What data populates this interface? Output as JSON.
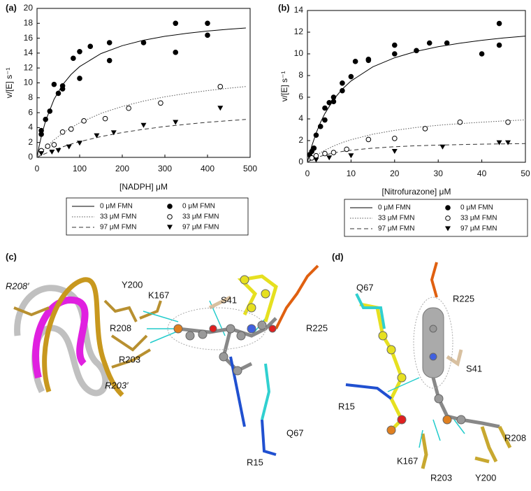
{
  "chart_data": [
    {
      "type": "scatter",
      "panel_label": "(a)",
      "x_label": "[NADPH] μM",
      "y_label": "v/[E] s⁻¹",
      "xlim": [
        0,
        500
      ],
      "xticks": [
        0,
        100,
        200,
        300,
        400,
        500
      ],
      "ylim": [
        0,
        20
      ],
      "yticks": [
        0,
        2,
        4,
        6,
        8,
        10,
        12,
        14,
        16,
        18,
        20
      ],
      "series": [
        {
          "name": "0 μM FMN",
          "type": "line",
          "style": "solid",
          "color": "#000000",
          "x": [
            0,
            5,
            10,
            20,
            40,
            60,
            80,
            100,
            150,
            200,
            250,
            300,
            350,
            400,
            450,
            490
          ],
          "values": [
            0,
            1.5,
            2.79,
            4.88,
            7.8,
            9.75,
            11.14,
            12.19,
            13.93,
            15.0,
            15.73,
            16.25,
            16.64,
            16.96,
            17.2,
            17.37
          ]
        },
        {
          "name": "33 μM FMN",
          "type": "line",
          "style": "dotted",
          "color": "#555555",
          "x": [
            0,
            5,
            10,
            20,
            40,
            60,
            80,
            100,
            150,
            200,
            250,
            300,
            350,
            400,
            450,
            490
          ],
          "values": [
            0,
            0.35,
            0.68,
            1.3,
            2.36,
            3.25,
            4.0,
            4.64,
            5.91,
            6.84,
            7.56,
            8.13,
            8.58,
            8.97,
            9.29,
            9.51
          ]
        },
        {
          "name": "97 μM FMN",
          "type": "line",
          "style": "dashed",
          "color": "#333333",
          "x": [
            0,
            5,
            10,
            20,
            40,
            60,
            80,
            100,
            150,
            200,
            250,
            300,
            350,
            400,
            450,
            490
          ],
          "values": [
            0,
            0.14,
            0.28,
            0.53,
            1.0,
            1.41,
            1.78,
            2.11,
            2.79,
            3.33,
            3.77,
            4.14,
            4.44,
            4.71,
            4.93,
            5.09
          ]
        },
        {
          "name": "0 μM FMN",
          "type": "scatter",
          "marker": "filled-circle",
          "color": "#000000",
          "x": [
            10,
            10,
            20,
            30,
            40,
            50,
            60,
            60,
            85,
            100,
            100,
            125,
            170,
            170,
            250,
            325,
            325,
            400,
            400
          ],
          "values": [
            3.1,
            3.6,
            5.1,
            6.2,
            9.8,
            8.6,
            9.2,
            9.6,
            13.3,
            14.2,
            10.6,
            14.9,
            13.0,
            15.4,
            15.4,
            18.0,
            14.1,
            18.0,
            16.4
          ]
        },
        {
          "name": "33 μM FMN",
          "type": "scatter",
          "marker": "open-circle",
          "color": "#000000",
          "x": [
            10,
            25,
            40,
            60,
            80,
            110,
            160,
            215,
            290,
            430
          ],
          "values": [
            0.9,
            1.5,
            1.7,
            3.4,
            3.8,
            4.9,
            5.2,
            6.6,
            7.3,
            9.5
          ]
        },
        {
          "name": "97 μM FMN",
          "type": "scatter",
          "marker": "triangle-down",
          "color": "#000000",
          "x": [
            10,
            35,
            50,
            75,
            100,
            140,
            180,
            250,
            325,
            430
          ],
          "values": [
            0.5,
            0.7,
            0.9,
            1.4,
            1.9,
            2.9,
            3.3,
            4.3,
            4.7,
            6.6
          ]
        }
      ]
    },
    {
      "type": "scatter",
      "panel_label": "(b)",
      "x_label": "[Nitrofurazone] μM",
      "y_label": "v/[E] s⁻¹",
      "xlim": [
        0,
        50
      ],
      "xticks": [
        0,
        10,
        20,
        30,
        40,
        50
      ],
      "ylim": [
        0,
        14
      ],
      "yticks": [
        0,
        2,
        4,
        6,
        8,
        10,
        12,
        14
      ],
      "series": [
        {
          "name": "0 μM FMN",
          "type": "line",
          "style": "solid",
          "color": "#000000",
          "x": [
            0,
            0.5,
            1,
            2,
            3,
            4,
            6,
            8,
            10,
            15,
            20,
            25,
            30,
            35,
            40,
            45,
            50
          ],
          "values": [
            0,
            0.79,
            1.5,
            2.7,
            3.68,
            4.5,
            5.79,
            6.75,
            7.5,
            8.8,
            9.64,
            10.23,
            10.66,
            10.99,
            11.25,
            11.47,
            11.64
          ]
        },
        {
          "name": "33 μM FMN",
          "type": "line",
          "style": "dotted",
          "color": "#555555",
          "x": [
            0,
            0.5,
            1,
            2,
            3,
            4,
            6,
            8,
            10,
            15,
            20,
            25,
            30,
            35,
            40,
            45,
            50
          ],
          "values": [
            0,
            0.17,
            0.33,
            0.63,
            0.88,
            1.11,
            1.5,
            1.82,
            2.08,
            2.59,
            2.94,
            3.21,
            3.41,
            3.57,
            3.7,
            3.81,
            3.91
          ]
        },
        {
          "name": "97 μM FMN",
          "type": "line",
          "style": "dashed",
          "color": "#333333",
          "x": [
            0,
            0.5,
            1,
            2,
            3,
            4,
            6,
            8,
            10,
            15,
            20,
            25,
            30,
            35,
            40,
            45,
            50
          ],
          "values": [
            0,
            0.12,
            0.22,
            0.4,
            0.55,
            0.67,
            0.86,
            1.0,
            1.11,
            1.3,
            1.43,
            1.52,
            1.58,
            1.63,
            1.67,
            1.7,
            1.72
          ]
        },
        {
          "name": "0 μM FMN",
          "type": "scatter",
          "marker": "filled-circle",
          "color": "#000000",
          "x": [
            0.5,
            1,
            1.5,
            2,
            3,
            4,
            4,
            5,
            6,
            6,
            8,
            8,
            10,
            11,
            14,
            14,
            20,
            20,
            25,
            28,
            32,
            40,
            44,
            44
          ],
          "values": [
            0.7,
            1.0,
            1.3,
            2.5,
            3.3,
            3.9,
            5.0,
            5.5,
            6.0,
            5.6,
            6.6,
            7.3,
            7.9,
            9.3,
            9.5,
            9.4,
            10.0,
            10.8,
            10.3,
            11.0,
            11.0,
            10.0,
            12.8,
            10.8
          ]
        },
        {
          "name": "33 μM FMN",
          "type": "scatter",
          "marker": "open-circle",
          "color": "#000000",
          "x": [
            1,
            2,
            4,
            6,
            9,
            14,
            20,
            27,
            35,
            46
          ],
          "values": [
            0.4,
            0.6,
            0.8,
            0.9,
            1.2,
            2.1,
            2.2,
            3.1,
            3.7,
            3.7
          ]
        },
        {
          "name": "97 μM FMN",
          "type": "scatter",
          "marker": "triangle-down",
          "color": "#000000",
          "x": [
            2,
            5,
            10,
            20,
            31,
            44,
            46
          ],
          "values": [
            0.2,
            0.4,
            0.6,
            1.0,
            1.4,
            1.8,
            1.8
          ]
        }
      ]
    }
  ],
  "structures": [
    {
      "panel_label": "(c)",
      "residues": [
        "R208′",
        "Y200",
        "K167",
        "S41",
        "R225",
        "R208",
        "R203",
        "R203′",
        "Q67",
        "R15"
      ]
    },
    {
      "panel_label": "(d)",
      "residues": [
        "Q67",
        "R225",
        "S41",
        "R15",
        "R208",
        "K167",
        "R203",
        "Y200"
      ]
    }
  ]
}
